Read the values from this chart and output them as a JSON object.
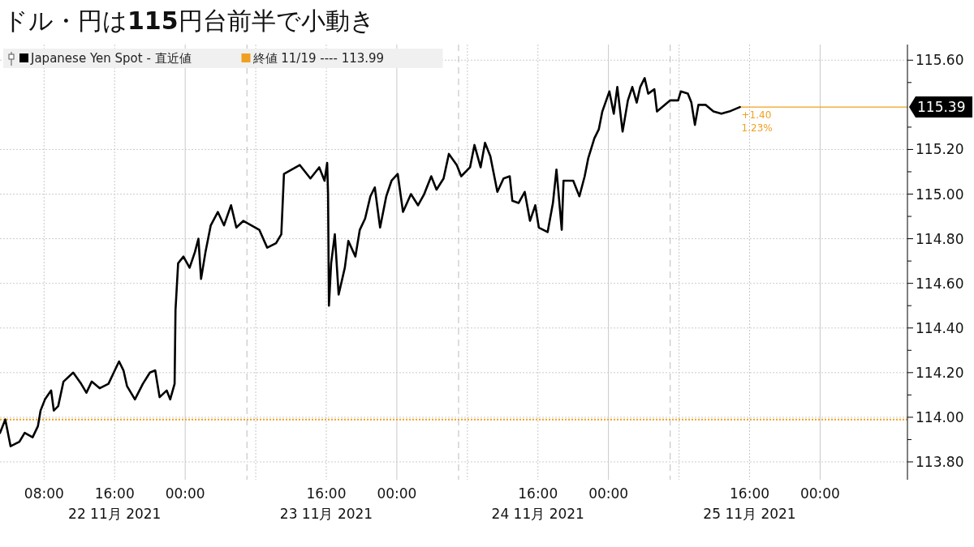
{
  "chart_data": {
    "type": "line",
    "title": "ドル・円は115円台前半で小動き",
    "xlim": [
      "2021-11-22T03:00",
      "2021-11-26T09:54"
    ],
    "xticks": [
      {
        "value": "2021-11-22T08:00",
        "label": "08:00"
      },
      {
        "value": "2021-11-22T16:00",
        "label": "16:00\n22 11月 2021"
      },
      {
        "value": "2021-11-23T00:00",
        "label": "00:00"
      },
      {
        "value": "2021-11-23T08:00",
        "label": null
      },
      {
        "value": "2021-11-23T16:00",
        "label": "16:00\n23 11月 2021"
      },
      {
        "value": "2021-11-24T00:00",
        "label": "00:00"
      },
      {
        "value": "2021-11-24T08:00",
        "label": null
      },
      {
        "value": "2021-11-24T16:00",
        "label": "16:00\n24 11月 2021"
      },
      {
        "value": "2021-11-25T00:00",
        "label": "00:00"
      },
      {
        "value": "2021-11-25T08:00",
        "label": null
      },
      {
        "value": "2021-11-25T16:00",
        "label": "16:00\n25 11月 2021"
      },
      {
        "value": "2021-11-26T00:00",
        "label": "00:00"
      }
    ],
    "ylim": [
      113.72,
      115.67
    ],
    "yticks": [
      {
        "value": 113.8,
        "label": "113.80"
      },
      {
        "value": 113.9,
        "label": null
      },
      {
        "value": 114.0,
        "label": "114.00"
      },
      {
        "value": 114.1,
        "label": null
      },
      {
        "value": 114.2,
        "label": "114.20"
      },
      {
        "value": 114.3,
        "label": null
      },
      {
        "value": 114.4,
        "label": "114.40"
      },
      {
        "value": 114.5,
        "label": null
      },
      {
        "value": 114.6,
        "label": "114.60"
      },
      {
        "value": 114.7,
        "label": null
      },
      {
        "value": 114.8,
        "label": "114.80"
      },
      {
        "value": 114.9,
        "label": null
      },
      {
        "value": 115.0,
        "label": "115.00"
      },
      {
        "value": 115.1,
        "label": null
      },
      {
        "value": 115.2,
        "label": "115.20"
      },
      {
        "value": 115.3,
        "label": null
      },
      {
        "value": 115.5,
        "label": null
      },
      {
        "value": 115.6,
        "label": "115.60"
      }
    ],
    "grid": true,
    "legend": "top left",
    "series": [
      {
        "name": "Japanese Yen Spot - 直近値",
        "color": "#000000",
        "x": [
          "2021-11-22T03:00",
          "2021-11-22T03:36",
          "2021-11-22T04:12",
          "2021-11-22T05:12",
          "2021-11-22T05:48",
          "2021-11-22T06:42",
          "2021-11-22T07:18",
          "2021-11-22T07:36",
          "2021-11-22T08:06",
          "2021-11-22T08:48",
          "2021-11-22T09:06",
          "2021-11-22T09:36",
          "2021-11-22T10:12",
          "2021-11-22T11:18",
          "2021-11-22T12:12",
          "2021-11-22T12:48",
          "2021-11-22T13:24",
          "2021-11-22T14:18",
          "2021-11-22T15:18",
          "2021-11-22T15:54",
          "2021-11-22T16:30",
          "2021-11-22T17:00",
          "2021-11-22T17:24",
          "2021-11-22T18:18",
          "2021-11-22T19:12",
          "2021-11-22T20:00",
          "2021-11-22T20:36",
          "2021-11-22T21:06",
          "2021-11-22T21:54",
          "2021-11-22T22:18",
          "2021-11-22T22:48",
          "2021-11-22T22:54",
          "2021-11-22T23:12",
          "2021-11-22T23:48",
          "2021-11-23T00:30",
          "2021-11-23T01:06",
          "2021-11-23T01:30",
          "2021-11-23T01:48",
          "2021-11-23T02:18",
          "2021-11-23T02:54",
          "2021-11-23T03:42",
          "2021-11-23T04:24",
          "2021-11-23T05:12",
          "2021-11-23T05:48",
          "2021-11-23T06:36",
          "2021-11-23T07:30",
          "2021-11-23T08:24",
          "2021-11-23T09:18",
          "2021-11-23T10:18",
          "2021-11-23T10:54",
          "2021-11-23T11:12",
          "2021-11-23T12:06",
          "2021-11-23T13:00",
          "2021-11-23T14:12",
          "2021-11-23T15:12",
          "2021-11-23T15:48",
          "2021-11-23T16:06",
          "2021-11-23T16:12",
          "2021-11-23T16:18",
          "2021-11-23T16:33",
          "2021-11-23T16:58",
          "2021-11-23T17:24",
          "2021-11-23T18:06",
          "2021-11-23T18:30",
          "2021-11-23T19:18",
          "2021-11-23T19:48",
          "2021-11-23T20:24",
          "2021-11-23T21:00",
          "2021-11-23T21:30",
          "2021-11-23T22:06",
          "2021-11-23T22:48",
          "2021-11-23T23:24",
          "2021-11-24T00:06",
          "2021-11-24T00:42",
          "2021-11-24T01:36",
          "2021-11-24T02:24",
          "2021-11-24T03:06",
          "2021-11-24T03:54",
          "2021-11-24T04:30",
          "2021-11-24T05:18",
          "2021-11-24T05:54",
          "2021-11-24T06:48",
          "2021-11-24T07:18",
          "2021-11-24T08:18",
          "2021-11-24T08:48",
          "2021-11-24T09:30",
          "2021-11-24T10:00",
          "2021-11-24T10:36",
          "2021-11-24T11:24",
          "2021-11-24T12:06",
          "2021-11-24T12:48",
          "2021-11-24T13:06",
          "2021-11-24T13:48",
          "2021-11-24T14:30",
          "2021-11-24T15:06",
          "2021-11-24T15:42",
          "2021-11-24T16:06",
          "2021-11-24T17:06",
          "2021-11-24T17:42",
          "2021-11-24T18:06",
          "2021-11-24T18:42",
          "2021-11-24T18:54",
          "2021-11-24T20:00",
          "2021-11-24T20:42",
          "2021-11-24T21:18",
          "2021-11-24T21:42",
          "2021-11-24T22:24",
          "2021-11-24T22:54",
          "2021-11-24T23:18",
          "2021-11-25T00:06",
          "2021-11-25T00:36",
          "2021-11-25T01:00",
          "2021-11-25T01:36",
          "2021-11-25T02:12",
          "2021-11-25T02:42",
          "2021-11-25T03:12",
          "2021-11-25T03:36",
          "2021-11-25T04:06",
          "2021-11-25T04:30",
          "2021-11-25T05:12",
          "2021-11-25T05:30",
          "2021-11-25T06:06",
          "2021-11-25T07:00",
          "2021-11-25T07:54",
          "2021-11-25T08:12",
          "2021-11-25T09:00",
          "2021-11-25T09:24",
          "2021-11-25T09:48",
          "2021-11-25T10:12",
          "2021-11-25T11:00",
          "2021-11-25T11:54",
          "2021-11-25T12:48",
          "2021-11-25T13:42",
          "2021-11-25T14:54"
        ],
        "values": [
          113.93,
          113.99,
          113.87,
          113.89,
          113.93,
          113.91,
          113.96,
          114.03,
          114.08,
          114.12,
          114.03,
          114.05,
          114.16,
          114.2,
          114.15,
          114.11,
          114.16,
          114.13,
          114.15,
          114.2,
          114.25,
          114.21,
          114.14,
          114.08,
          114.15,
          114.2,
          114.21,
          114.09,
          114.12,
          114.08,
          114.15,
          114.48,
          114.69,
          114.72,
          114.67,
          114.74,
          114.8,
          114.62,
          114.74,
          114.86,
          114.92,
          114.86,
          114.95,
          114.85,
          114.88,
          114.86,
          114.84,
          114.76,
          114.78,
          114.82,
          115.09,
          115.11,
          115.13,
          115.07,
          115.12,
          115.06,
          115.14,
          115.0,
          114.5,
          114.69,
          114.82,
          114.55,
          114.67,
          114.79,
          114.72,
          114.84,
          114.89,
          114.99,
          115.03,
          114.85,
          114.99,
          115.06,
          115.09,
          114.92,
          115.0,
          114.95,
          115.0,
          115.08,
          115.02,
          115.07,
          115.18,
          115.13,
          115.08,
          115.12,
          115.22,
          115.12,
          115.23,
          115.17,
          115.01,
          115.07,
          115.08,
          114.97,
          114.96,
          115.01,
          114.88,
          114.95,
          114.85,
          114.83,
          114.96,
          115.11,
          114.84,
          115.06,
          115.06,
          114.99,
          115.08,
          115.16,
          115.25,
          115.29,
          115.37,
          115.46,
          115.36,
          115.48,
          115.28,
          115.42,
          115.48,
          115.41,
          115.48,
          115.52,
          115.45,
          115.47,
          115.37,
          115.39,
          115.42,
          115.42,
          115.46,
          115.45,
          115.41,
          115.31,
          115.4,
          115.4,
          115.37,
          115.36,
          115.37,
          115.39
        ]
      }
    ],
    "ref_lines": [
      {
        "axis": "y",
        "value": 113.99,
        "label": "終値 11/19 ---- 113.99",
        "color": "#f0a020",
        "line_style": "dotted"
      },
      {
        "axis": "y",
        "value": 115.39,
        "label": "115.39",
        "color": "#f0a020",
        "line_style": "solid"
      },
      {
        "axis": "x",
        "value": "2021-11-23T07:00",
        "color": "#bbbbbb",
        "line_style": "dashed"
      },
      {
        "axis": "x",
        "value": "2021-11-24T07:00",
        "color": "#bbbbbb",
        "line_style": "dashed"
      },
      {
        "axis": "x",
        "value": "2021-11-25T07:00",
        "color": "#bbbbbb",
        "line_style": "dashed"
      }
    ],
    "annotations": [
      {
        "text": "+1.40",
        "x": "2021-11-25T14:54",
        "y": 115.39
      },
      {
        "text": "1.23%",
        "x": "2021-11-25T14:54",
        "y": 115.39
      }
    ]
  }
}
